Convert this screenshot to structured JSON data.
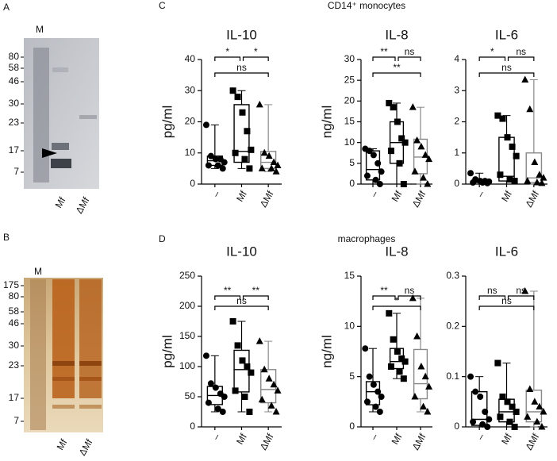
{
  "sections": [
    {
      "label": "C",
      "title": "CD14⁺ monocytes"
    },
    {
      "label": "D",
      "title": "macrophages"
    }
  ],
  "gels": [
    {
      "label": "A",
      "lane_header": "M",
      "markers": [
        80,
        58,
        46,
        30,
        23,
        17,
        7
      ],
      "lanes": [
        "Mf",
        "ΔMf"
      ]
    },
    {
      "label": "B",
      "lane_header": "M",
      "markers": [
        175,
        80,
        58,
        46,
        30,
        23,
        17,
        7
      ],
      "lanes": [
        "Mf",
        "ΔMf"
      ]
    }
  ],
  "chart_data": [
    {
      "type": "box",
      "title": "IL-10",
      "ylabel": "pg/ml",
      "ylim": [
        0,
        40
      ],
      "yticks": [
        0,
        10,
        20,
        30,
        40
      ],
      "categories": [
        "–",
        "Mf",
        "ΔMf"
      ],
      "colors": [
        "#000000",
        "#000000",
        "#888888"
      ],
      "markers": [
        "circle",
        "square",
        "triangle"
      ],
      "boxes": [
        {
          "min": 5,
          "q1": 6,
          "median": 7.5,
          "q3": 9,
          "max": 19,
          "points": [
            19,
            9,
            8,
            8,
            7,
            6,
            6,
            5
          ]
        },
        {
          "min": 5,
          "q1": 7,
          "median": 10.5,
          "q3": 25.5,
          "max": 30,
          "points": [
            30,
            28,
            23,
            17,
            11,
            10,
            8,
            5
          ]
        },
        {
          "min": 4,
          "q1": 5,
          "median": 7,
          "q3": 10.5,
          "max": 25.5,
          "points": [
            25.5,
            10,
            9,
            7,
            6,
            5,
            5,
            4
          ]
        }
      ],
      "annotations": [
        {
          "from": 0,
          "to": 1,
          "label": "*"
        },
        {
          "from": 1,
          "to": 2,
          "label": "*"
        },
        {
          "from": 0,
          "to": 2,
          "label": "ns"
        }
      ]
    },
    {
      "type": "box",
      "title": "IL-8",
      "ylabel": "ng/ml",
      "ylim": [
        0,
        30
      ],
      "yticks": [
        0,
        5,
        10,
        15,
        20,
        25,
        30
      ],
      "categories": [
        "–",
        "Mf",
        "ΔMf"
      ],
      "colors": [
        "#000000",
        "#000000",
        "#888888"
      ],
      "markers": [
        "circle",
        "square",
        "triangle"
      ],
      "boxes": [
        {
          "min": 0,
          "q1": 1,
          "median": 3.5,
          "q3": 8,
          "max": 8.5,
          "points": [
            8.5,
            8,
            7,
            5,
            3,
            2,
            1,
            0
          ]
        },
        {
          "min": 0,
          "q1": 5,
          "median": 10,
          "q3": 15,
          "max": 19.5,
          "points": [
            19.5,
            18.5,
            15,
            11,
            10,
            8,
            5,
            0
          ]
        },
        {
          "min": 0,
          "q1": 2.5,
          "median": 6.5,
          "q3": 10.8,
          "max": 18.5,
          "points": [
            18.5,
            10.5,
            9,
            7,
            6,
            3,
            1.5,
            0
          ]
        }
      ],
      "annotations": [
        {
          "from": 0,
          "to": 1,
          "label": "**"
        },
        {
          "from": 1,
          "to": 2,
          "label": "ns"
        },
        {
          "from": 0,
          "to": 2,
          "label": "**"
        }
      ]
    },
    {
      "type": "box",
      "title": "IL-6",
      "ylim": [
        0,
        4
      ],
      "yticks": [
        0,
        1,
        2,
        3,
        4
      ],
      "categories": [
        "–",
        "Mf",
        "ΔMf"
      ],
      "colors": [
        "#000000",
        "#000000",
        "#888888"
      ],
      "markers": [
        "circle",
        "square",
        "triangle"
      ],
      "boxes": [
        {
          "min": 0,
          "q1": 0.05,
          "median": 0.1,
          "q3": 0.12,
          "max": 0.35,
          "points": [
            0.35,
            0.15,
            0.1,
            0.1,
            0.08,
            0.05,
            0.05,
            0.03
          ]
        },
        {
          "min": 0,
          "q1": 0.1,
          "median": 0.25,
          "q3": 1.5,
          "max": 2.2,
          "points": [
            2.2,
            2.1,
            1.5,
            1.2,
            0.9,
            0.3,
            0.15,
            0.1
          ]
        },
        {
          "min": 0,
          "q1": 0.05,
          "median": 0.2,
          "q3": 1,
          "max": 3.35,
          "points": [
            3.35,
            2.4,
            0.7,
            0.3,
            0.2,
            0.1,
            0.05,
            0.03
          ]
        }
      ],
      "annotations": [
        {
          "from": 0,
          "to": 1,
          "label": "*"
        },
        {
          "from": 1,
          "to": 2,
          "label": "ns"
        },
        {
          "from": 0,
          "to": 2,
          "label": "ns"
        }
      ]
    },
    {
      "type": "box",
      "title": "IL-10",
      "ylabel": "pg/ml",
      "ylim": [
        0,
        250
      ],
      "yticks": [
        0,
        50,
        100,
        150,
        200,
        250
      ],
      "categories": [
        "–",
        "Mf",
        "ΔMf"
      ],
      "colors": [
        "#000000",
        "#000000",
        "#888888"
      ],
      "markers": [
        "circle",
        "square",
        "triangle"
      ],
      "boxes": [
        {
          "min": 25,
          "q1": 37,
          "median": 52,
          "q3": 67,
          "max": 118,
          "points": [
            118,
            72,
            65,
            55,
            50,
            40,
            30,
            25
          ]
        },
        {
          "min": 25,
          "q1": 58,
          "median": 95,
          "q3": 127,
          "max": 175,
          "points": [
            175,
            135,
            110,
            100,
            90,
            60,
            50,
            25
          ]
        },
        {
          "min": 25,
          "q1": 40,
          "median": 62,
          "q3": 95,
          "max": 142,
          "points": [
            142,
            95,
            80,
            70,
            60,
            45,
            35,
            25
          ]
        }
      ],
      "annotations": [
        {
          "from": 0,
          "to": 1,
          "label": "**"
        },
        {
          "from": 1,
          "to": 2,
          "label": "**"
        },
        {
          "from": 0,
          "to": 2,
          "label": "ns"
        }
      ]
    },
    {
      "type": "box",
      "title": "IL-8",
      "ylabel": "ng/ml",
      "ylim": [
        0,
        15
      ],
      "yticks": [
        0,
        5,
        10,
        15
      ],
      "categories": [
        "–",
        "Mf",
        "ΔMf"
      ],
      "colors": [
        "#000000",
        "#000000",
        "#888888"
      ],
      "markers": [
        "circle",
        "square",
        "triangle"
      ],
      "boxes": [
        {
          "min": 1.5,
          "q1": 2.2,
          "median": 3.5,
          "q3": 4.5,
          "max": 7.8,
          "points": [
            7.8,
            5,
            4.2,
            3.5,
            3,
            2.5,
            2,
            1.5
          ]
        },
        {
          "min": 4.8,
          "q1": 5.8,
          "median": 6.5,
          "q3": 7.8,
          "max": 11.3,
          "points": [
            11.3,
            8.7,
            7.5,
            6.8,
            6.5,
            6,
            5.5,
            4.8
          ]
        },
        {
          "min": 1.5,
          "q1": 2.8,
          "median": 4.3,
          "q3": 7.7,
          "max": 12.8,
          "points": [
            12.8,
            9,
            6,
            5,
            4,
            3,
            2,
            1.5
          ]
        }
      ],
      "annotations": [
        {
          "from": 0,
          "to": 1,
          "label": "**"
        },
        {
          "from": 1,
          "to": 2,
          "label": "ns"
        },
        {
          "from": 0,
          "to": 2,
          "label": "*"
        }
      ]
    },
    {
      "type": "box",
      "title": "IL-6",
      "ylim": [
        0,
        0.3
      ],
      "yticks": [
        0,
        0.1,
        0.2,
        0.3
      ],
      "categories": [
        "–",
        "Mf",
        "ΔMf"
      ],
      "colors": [
        "#000000",
        "#000000",
        "#888888"
      ],
      "markers": [
        "circle",
        "square",
        "triangle"
      ],
      "boxes": [
        {
          "min": 0,
          "q1": 0.003,
          "median": 0.015,
          "q3": 0.07,
          "max": 0.1,
          "points": [
            0.1,
            0.07,
            0.06,
            0.03,
            0.015,
            0.01,
            0.005,
            0
          ]
        },
        {
          "min": 0,
          "q1": 0.01,
          "median": 0.03,
          "q3": 0.055,
          "max": 0.127,
          "points": [
            0.127,
            0.06,
            0.05,
            0.04,
            0.03,
            0.02,
            0.01,
            0
          ]
        },
        {
          "min": 0,
          "q1": 0.01,
          "median": 0.03,
          "q3": 0.073,
          "max": 0.27,
          "points": [
            0.27,
            0.075,
            0.05,
            0.04,
            0.03,
            0.02,
            0.01,
            0
          ]
        }
      ],
      "annotations": [
        {
          "from": 0,
          "to": 1,
          "label": "ns"
        },
        {
          "from": 1,
          "to": 2,
          "label": "ns"
        },
        {
          "from": 0,
          "to": 2,
          "label": "ns"
        }
      ]
    }
  ]
}
